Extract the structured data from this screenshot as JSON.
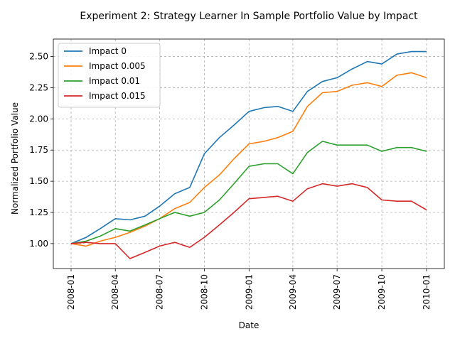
{
  "chart_data": {
    "type": "line",
    "title": "Experiment 2: Strategy Learner In Sample Portfolio Value by Impact",
    "xlabel": "Date",
    "ylabel": "Normalized Portfolio Value",
    "xlim": [
      "2008-01-01",
      "2010-01-01"
    ],
    "ylim": [
      0.8,
      2.64
    ],
    "x_ticks": [
      "2008-01",
      "2008-04",
      "2008-07",
      "2008-10",
      "2009-01",
      "2009-04",
      "2009-07",
      "2009-10",
      "2010-01"
    ],
    "y_ticks": [
      "1.00",
      "1.25",
      "1.50",
      "1.75",
      "2.00",
      "2.25",
      "2.50"
    ],
    "grid": true,
    "legend_position": "top-left",
    "x": [
      "2008-01-01",
      "2008-02-01",
      "2008-03-01",
      "2008-04-01",
      "2008-05-01",
      "2008-06-01",
      "2008-07-01",
      "2008-08-01",
      "2008-09-01",
      "2008-10-01",
      "2008-11-01",
      "2008-12-01",
      "2009-01-01",
      "2009-02-01",
      "2009-03-01",
      "2009-04-01",
      "2009-05-01",
      "2009-06-01",
      "2009-07-01",
      "2009-08-01",
      "2009-09-01",
      "2009-10-01",
      "2009-11-01",
      "2009-12-01",
      "2010-01-01"
    ],
    "series": [
      {
        "name": "Impact 0",
        "color": "#1f77b4",
        "values": [
          1.0,
          1.05,
          1.12,
          1.2,
          1.19,
          1.22,
          1.3,
          1.4,
          1.45,
          1.72,
          1.85,
          1.95,
          2.06,
          2.09,
          2.1,
          2.06,
          2.22,
          2.3,
          2.33,
          2.4,
          2.46,
          2.44,
          2.52,
          2.54,
          2.54
        ]
      },
      {
        "name": "Impact 0.005",
        "color": "#ff7f0e",
        "values": [
          1.0,
          0.98,
          1.02,
          1.05,
          1.09,
          1.14,
          1.2,
          1.28,
          1.33,
          1.45,
          1.55,
          1.68,
          1.8,
          1.82,
          1.85,
          1.9,
          2.1,
          2.21,
          2.22,
          2.27,
          2.29,
          2.26,
          2.35,
          2.37,
          2.33
        ]
      },
      {
        "name": "Impact 0.01",
        "color": "#2ca02c",
        "values": [
          1.0,
          1.02,
          1.06,
          1.12,
          1.1,
          1.15,
          1.2,
          1.25,
          1.22,
          1.25,
          1.35,
          1.48,
          1.62,
          1.64,
          1.64,
          1.56,
          1.73,
          1.82,
          1.79,
          1.79,
          1.79,
          1.74,
          1.77,
          1.77,
          1.74
        ]
      },
      {
        "name": "Impact 0.015",
        "color": "#d62728",
        "values": [
          1.0,
          1.01,
          1.0,
          1.0,
          0.88,
          0.93,
          0.98,
          1.01,
          0.97,
          1.05,
          1.15,
          1.25,
          1.36,
          1.37,
          1.38,
          1.34,
          1.44,
          1.48,
          1.46,
          1.48,
          1.45,
          1.35,
          1.34,
          1.34,
          1.27
        ]
      }
    ]
  }
}
